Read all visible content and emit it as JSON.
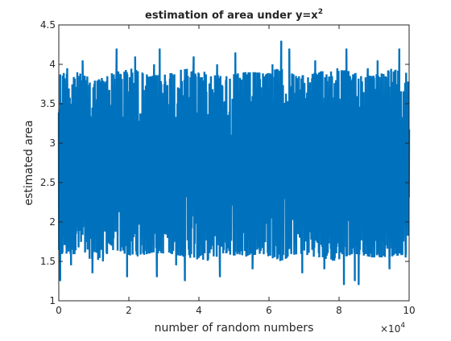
{
  "chart_data": {
    "type": "line",
    "title": "estimation of area under y=x",
    "title_superscript": "2",
    "xlabel": "number of random numbers",
    "ylabel": "estimated area",
    "x_exponent_base": "×10",
    "x_exponent_power": "4",
    "xlim": [
      0,
      100000
    ],
    "ylim": [
      1,
      4.5
    ],
    "x_ticks": [
      0,
      20000,
      40000,
      60000,
      80000,
      100000
    ],
    "x_tick_labels": [
      "0",
      "2",
      "4",
      "6",
      "8",
      "10"
    ],
    "y_ticks": [
      1,
      1.5,
      2,
      2.5,
      3,
      3.5,
      4,
      4.5
    ],
    "y_tick_labels": [
      "1",
      "1.5",
      "2",
      "2.5",
      "3",
      "3.5",
      "4",
      "4.5"
    ],
    "grid": false,
    "series": [
      {
        "color": "#0072bd",
        "band_min": [
          1.55,
          1.6,
          1.5,
          1.65,
          1.55,
          1.6,
          1.6,
          1.55,
          1.5,
          1.6,
          1.55,
          1.6,
          1.5,
          1.6,
          1.55,
          1.5,
          1.6,
          1.55,
          1.55,
          1.6
        ],
        "band_max": [
          3.9,
          3.9,
          3.8,
          3.9,
          3.95,
          3.85,
          3.9,
          3.95,
          3.9,
          3.85,
          3.9,
          3.9,
          3.95,
          3.85,
          3.9,
          3.95,
          3.9,
          3.85,
          3.95,
          3.9
        ],
        "spikes": [
          [
            400,
            1.25
          ],
          [
            2400,
            3.95
          ],
          [
            3500,
            1.45
          ],
          [
            6800,
            4.05
          ],
          [
            9600,
            1.35
          ],
          [
            12600,
            1.5
          ],
          [
            16500,
            4.2
          ],
          [
            19500,
            1.3
          ],
          [
            21800,
            4.1
          ],
          [
            27200,
            4.0
          ],
          [
            28000,
            1.3
          ],
          [
            28800,
            4.2
          ],
          [
            33500,
            1.45
          ],
          [
            36000,
            1.25
          ],
          [
            38500,
            4.1
          ],
          [
            45200,
            4.0
          ],
          [
            46000,
            1.3
          ],
          [
            50400,
            4.15
          ],
          [
            55300,
            1.4
          ],
          [
            61000,
            4.0
          ],
          [
            63500,
            4.3
          ],
          [
            65800,
            4.2
          ],
          [
            69500,
            1.35
          ],
          [
            73200,
            4.05
          ],
          [
            75800,
            1.4
          ],
          [
            79500,
            3.95
          ],
          [
            81400,
            1.2
          ],
          [
            82100,
            4.2
          ],
          [
            84500,
            1.25
          ],
          [
            85600,
            1.2
          ],
          [
            88200,
            3.95
          ],
          [
            91000,
            4.05
          ],
          [
            94400,
            1.4
          ],
          [
            97200,
            4.2
          ],
          [
            99000,
            1.55
          ]
        ]
      }
    ]
  }
}
